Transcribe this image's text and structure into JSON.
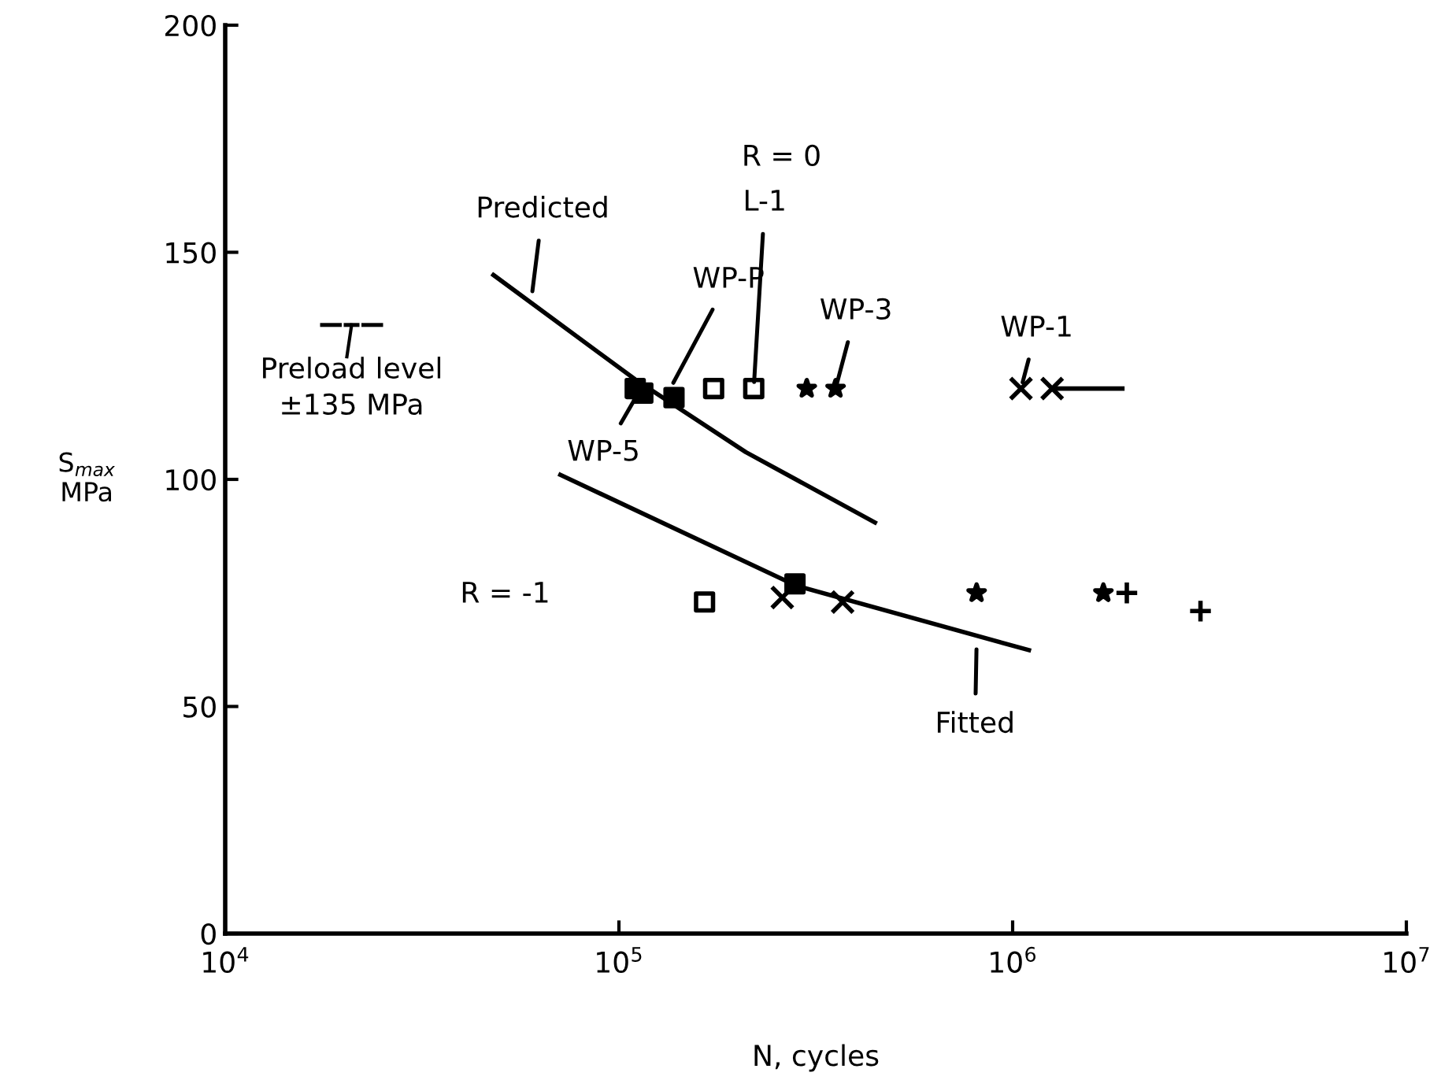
{
  "chart_data": {
    "type": "scatter",
    "xlabel": "N, cycles",
    "ylabel": "S$_{max}$\nMPa",
    "log": "x",
    "xlim": [
      10000,
      10000000
    ],
    "ylim": [
      0,
      200
    ],
    "xticks": [
      {
        "value": 10000,
        "label": "10$^{4}$"
      },
      {
        "value": 100000,
        "label": "10$^{5}$"
      },
      {
        "value": 1000000,
        "label": "10$^{6}$"
      },
      {
        "value": 10000000,
        "label": "10$^{7}$"
      }
    ],
    "yticks": [
      0,
      50,
      100,
      150,
      200
    ],
    "grid": false,
    "legend": false,
    "series": [
      {
        "type": "line",
        "color": "#000000",
        "marker": "none",
        "line_style": "solid",
        "x": [
          48000,
          110000,
          210000,
          447000
        ],
        "values": [
          145,
          122,
          106,
          90.5
        ]
      },
      {
        "type": "line",
        "color": "#000000",
        "marker": "none",
        "line_style": "solid",
        "x": [
          71000,
          282000,
          1100000
        ],
        "values": [
          101,
          76.6,
          62.4
        ]
      },
      {
        "color": "#000000",
        "marker": "square",
        "x": [
          110000,
          115000,
          138000,
          280000
        ],
        "values": [
          120,
          119,
          118,
          77
        ]
      },
      {
        "color": "#000000",
        "marker": "square_open",
        "x": [
          174000,
          220000,
          165000
        ],
        "values": [
          120,
          120,
          73
        ]
      },
      {
        "color": "#000000",
        "marker": "star",
        "x": [
          300000,
          355000,
          810000,
          1700000
        ],
        "values": [
          120,
          120,
          75,
          75
        ]
      },
      {
        "color": "#000000",
        "marker": "cross",
        "x": [
          1050000,
          1260000,
          260000,
          370000
        ],
        "values": [
          120,
          120,
          74,
          73
        ]
      },
      {
        "color": "#000000",
        "marker": "plus",
        "x": [
          1950000,
          3000000
        ],
        "values": [
          75,
          71
        ]
      },
      {
        "type": "line",
        "color": "#000000",
        "marker": "none",
        "line_style": "solid",
        "x": [
          1260000,
          1900000
        ],
        "values": [
          120,
          120
        ]
      }
    ],
    "annotations": [
      {
        "text": "Predicted",
        "x": 60000,
        "y": 140
      },
      {
        "text": "WP-P",
        "x": 135000,
        "y": 120
      },
      {
        "text": "L-1",
        "x": 220000,
        "y": 120
      },
      {
        "text": "WP-3",
        "x": 355000,
        "y": 120
      },
      {
        "text": "WP-1",
        "x": 1050000,
        "y": 120
      },
      {
        "text": "WP-5",
        "x": 112000,
        "y": 119
      },
      {
        "text": "Fitted",
        "x": 810000,
        "y": 64
      },
      "R = 0",
      "R = -1",
      "Preload level\n±135 MPa"
    ]
  }
}
